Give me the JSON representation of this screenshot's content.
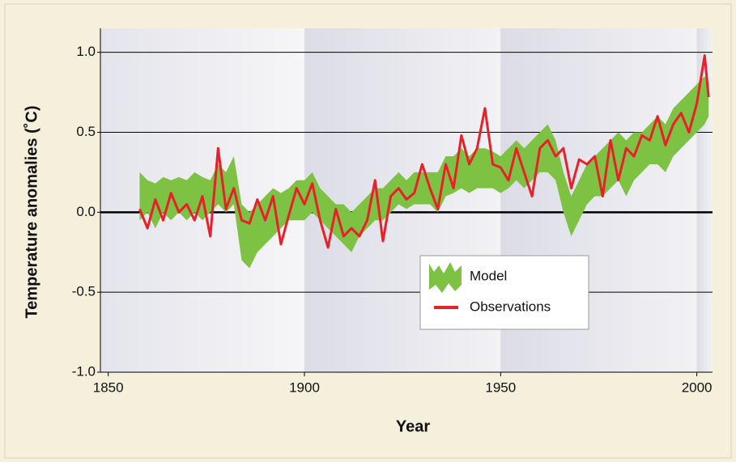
{
  "chart_data": {
    "type": "line",
    "xlabel": "Year",
    "ylabel": "Temperature anomalies (˚C)",
    "x": [
      1858,
      1860,
      1862,
      1864,
      1866,
      1868,
      1870,
      1872,
      1874,
      1876,
      1878,
      1880,
      1882,
      1884,
      1886,
      1888,
      1890,
      1892,
      1894,
      1896,
      1898,
      1900,
      1902,
      1904,
      1906,
      1908,
      1910,
      1912,
      1914,
      1916,
      1918,
      1920,
      1922,
      1924,
      1926,
      1928,
      1930,
      1932,
      1934,
      1936,
      1938,
      1940,
      1942,
      1944,
      1946,
      1948,
      1950,
      1952,
      1954,
      1956,
      1958,
      1960,
      1962,
      1964,
      1966,
      1968,
      1970,
      1972,
      1974,
      1976,
      1978,
      1980,
      1982,
      1984,
      1986,
      1988,
      1990,
      1992,
      1994,
      1996,
      1998,
      2000,
      2002,
      2003
    ],
    "series": [
      {
        "name": "Model",
        "color": "#7dc242",
        "low": [
          -0.05,
          0.0,
          -0.1,
          0.0,
          -0.05,
          0.0,
          -0.05,
          0.0,
          -0.05,
          0.0,
          0.05,
          0.0,
          0.05,
          -0.3,
          -0.35,
          -0.25,
          -0.2,
          -0.15,
          -0.1,
          -0.05,
          -0.05,
          -0.05,
          0.0,
          -0.05,
          -0.1,
          -0.15,
          -0.2,
          -0.25,
          -0.15,
          -0.1,
          -0.05,
          -0.05,
          0.0,
          0.05,
          0.02,
          0.05,
          0.05,
          0.05,
          0.0,
          0.1,
          0.12,
          0.15,
          0.12,
          0.15,
          0.15,
          0.15,
          0.12,
          0.15,
          0.2,
          0.15,
          0.2,
          0.25,
          0.25,
          0.2,
          0.0,
          -0.15,
          -0.05,
          0.05,
          0.1,
          0.1,
          0.15,
          0.2,
          0.1,
          0.2,
          0.25,
          0.3,
          0.3,
          0.25,
          0.35,
          0.4,
          0.45,
          0.5,
          0.55,
          0.6
        ],
        "high": [
          0.25,
          0.2,
          0.18,
          0.22,
          0.2,
          0.22,
          0.2,
          0.25,
          0.22,
          0.2,
          0.3,
          0.25,
          0.35,
          0.05,
          0.0,
          0.05,
          0.1,
          0.15,
          0.12,
          0.15,
          0.2,
          0.2,
          0.25,
          0.15,
          0.1,
          0.05,
          0.05,
          0.0,
          0.05,
          0.1,
          0.15,
          0.15,
          0.2,
          0.25,
          0.2,
          0.25,
          0.25,
          0.25,
          0.25,
          0.35,
          0.35,
          0.4,
          0.35,
          0.4,
          0.4,
          0.38,
          0.35,
          0.4,
          0.45,
          0.4,
          0.45,
          0.5,
          0.55,
          0.45,
          0.25,
          0.1,
          0.2,
          0.3,
          0.35,
          0.4,
          0.45,
          0.5,
          0.45,
          0.5,
          0.5,
          0.55,
          0.6,
          0.55,
          0.65,
          0.7,
          0.75,
          0.8,
          0.85,
          0.8
        ]
      },
      {
        "name": "Observations",
        "color": "#e8202a",
        "values": [
          0.02,
          -0.1,
          0.08,
          -0.05,
          0.12,
          0.0,
          0.05,
          -0.05,
          0.1,
          -0.15,
          0.4,
          0.02,
          0.15,
          -0.05,
          -0.07,
          0.08,
          -0.05,
          0.1,
          -0.2,
          -0.02,
          0.15,
          0.05,
          0.18,
          -0.05,
          -0.22,
          0.02,
          -0.15,
          -0.1,
          -0.15,
          -0.05,
          0.2,
          -0.18,
          0.1,
          0.15,
          0.08,
          0.12,
          0.3,
          0.15,
          0.02,
          0.3,
          0.15,
          0.48,
          0.3,
          0.4,
          0.65,
          0.3,
          0.28,
          0.2,
          0.4,
          0.25,
          0.1,
          0.4,
          0.45,
          0.35,
          0.4,
          0.15,
          0.33,
          0.3,
          0.35,
          0.1,
          0.45,
          0.2,
          0.4,
          0.35,
          0.48,
          0.45,
          0.6,
          0.42,
          0.55,
          0.62,
          0.5,
          0.68,
          0.98,
          0.72
        ]
      }
    ],
    "xlim": [
      1848,
      2004
    ],
    "xticks": [
      1850,
      1900,
      1950,
      2000
    ],
    "ylim": [
      -1.0,
      1.15
    ],
    "yticks": [
      {
        "value": -1,
        "label": "-1.0"
      },
      -0.5,
      {
        "value": 0,
        "label": "0.0"
      },
      0.5,
      {
        "value": 1,
        "label": "1.0"
      }
    ],
    "grid": true
  }
}
